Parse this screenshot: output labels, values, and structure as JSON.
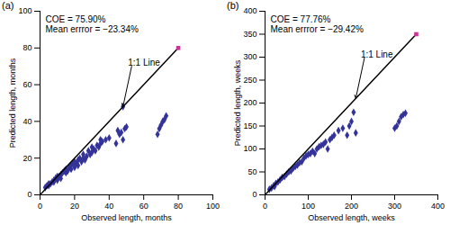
{
  "chart_data": [
    {
      "type": "scatter",
      "title": "(a)",
      "x_label": "Observed length, months",
      "y_label": "Predicted length, months",
      "annotations": [
        "COE = 75.90%",
        "Mean errror = −23.34%"
      ],
      "xlim": [
        0,
        100
      ],
      "ylim": [
        0,
        100
      ],
      "xticks": [
        0,
        20,
        40,
        60,
        80,
        100
      ],
      "yticks": [
        0,
        20,
        40,
        60,
        80,
        100
      ],
      "grid": false,
      "series": [
        {
          "type": "scatter",
          "color": "#333399",
          "marker": "diamond",
          "x": [
            3,
            4,
            5,
            5,
            6,
            7,
            8,
            8,
            9,
            10,
            10,
            11,
            12,
            12,
            13,
            14,
            15,
            15,
            16,
            17,
            18,
            18,
            19,
            20,
            20,
            21,
            22,
            22,
            23,
            24,
            25,
            25,
            26,
            27,
            28,
            29,
            30,
            30,
            31,
            32,
            33,
            34,
            35,
            35,
            36,
            38,
            40,
            44,
            45,
            46,
            47,
            48,
            49,
            50,
            48,
            68,
            69,
            70,
            71,
            72,
            73
          ],
          "values": [
            4,
            5,
            5,
            6,
            6,
            7,
            8,
            7,
            9,
            8,
            10,
            10,
            11,
            9,
            12,
            13,
            12,
            14,
            13,
            15,
            14,
            16,
            17,
            15,
            18,
            17,
            19,
            16,
            20,
            18,
            22,
            20,
            19,
            21,
            24,
            22,
            23,
            26,
            25,
            24,
            27,
            26,
            28,
            30,
            29,
            30,
            31,
            28,
            35,
            33,
            34,
            48,
            36,
            37,
            30,
            33,
            36,
            38,
            40,
            41,
            43
          ]
        },
        {
          "type": "line",
          "name": "1:1 Line",
          "color": "#000000",
          "x": [
            0,
            80
          ],
          "values": [
            0,
            80
          ]
        },
        {
          "type": "scatter",
          "color": "#cc3399",
          "marker": "square",
          "x": [
            80
          ],
          "values": [
            80
          ]
        }
      ]
    },
    {
      "type": "scatter",
      "title": "(b)",
      "x_label": "Observed length, weeks",
      "y_label": "Predicted length, weeks",
      "annotations": [
        "COE = 77.76%",
        "Mean errror = −29.42%"
      ],
      "xlim": [
        0,
        400
      ],
      "ylim": [
        0,
        400
      ],
      "xticks": [
        0,
        100,
        200,
        300,
        400
      ],
      "yticks": [
        0,
        50,
        100,
        150,
        200,
        250,
        300,
        350,
        400
      ],
      "grid": false,
      "series": [
        {
          "type": "scatter",
          "color": "#333399",
          "marker": "diamond",
          "x": [
            10,
            15,
            20,
            22,
            25,
            30,
            35,
            40,
            45,
            50,
            55,
            60,
            65,
            70,
            75,
            80,
            85,
            90,
            95,
            100,
            105,
            110,
            115,
            120,
            125,
            130,
            135,
            140,
            145,
            150,
            155,
            160,
            170,
            180,
            190,
            195,
            200,
            205,
            210,
            300,
            305,
            310,
            315,
            320,
            325
          ],
          "values": [
            12,
            15,
            20,
            18,
            25,
            28,
            33,
            38,
            40,
            45,
            50,
            52,
            58,
            62,
            65,
            70,
            72,
            80,
            85,
            88,
            90,
            95,
            90,
            100,
            105,
            108,
            110,
            115,
            100,
            120,
            125,
            130,
            140,
            145,
            130,
            150,
            160,
            180,
            135,
            145,
            150,
            160,
            170,
            175,
            178
          ]
        },
        {
          "type": "line",
          "name": "1:1 Line",
          "color": "#000000",
          "x": [
            0,
            350
          ],
          "values": [
            0,
            350
          ]
        },
        {
          "type": "scatter",
          "color": "#cc3399",
          "marker": "square",
          "x": [
            350
          ],
          "values": [
            350
          ]
        }
      ]
    }
  ]
}
